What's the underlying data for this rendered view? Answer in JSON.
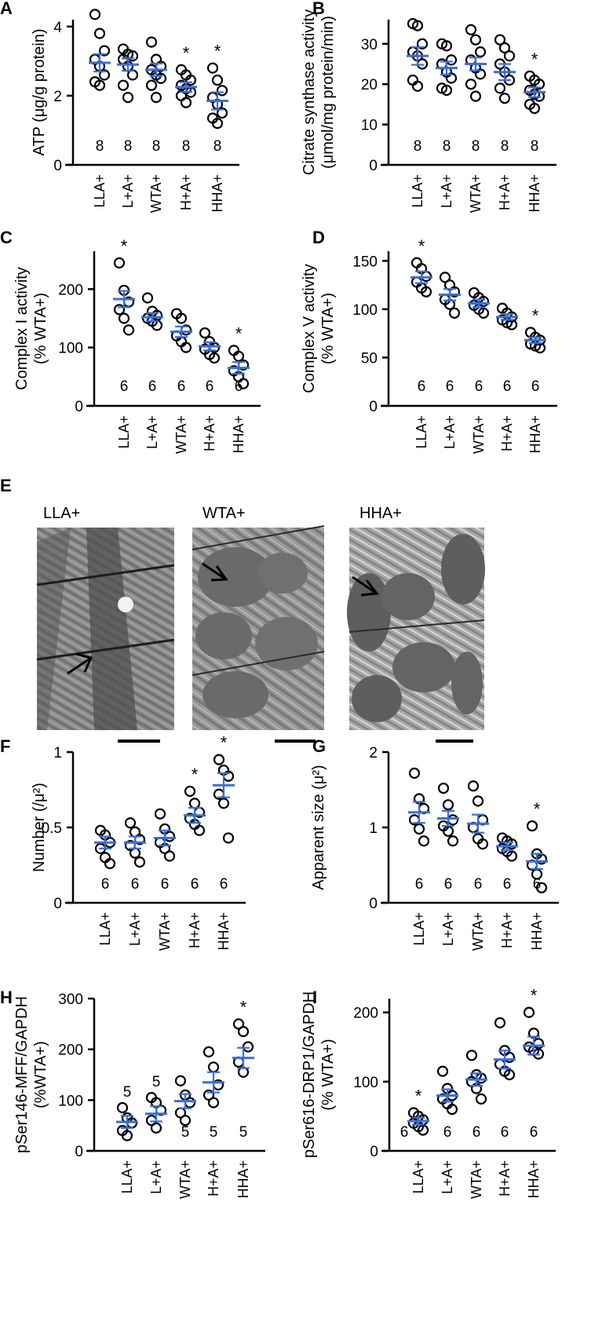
{
  "charts_type": "scatter",
  "micrographs": {
    "panel": "E",
    "images": [
      {
        "label": "LLA+"
      },
      {
        "label": "WTA+"
      },
      {
        "label": "HHA+"
      }
    ]
  },
  "colors": {
    "mean_bar": "#3a6fd8",
    "points": "#000000"
  },
  "chart_data": [
    {
      "panel": "A",
      "type": "scatter",
      "categories": [
        "LLA+",
        "L+A+",
        "WTA+",
        "H+A+",
        "HHA+"
      ],
      "ylabel": [
        "ATP (μg/g protein)"
      ],
      "ylim": [
        0,
        4.2
      ],
      "yticks": [
        0,
        2,
        4
      ],
      "n": [
        "8",
        "8",
        "8",
        "8",
        "8"
      ],
      "n_pos": "bottom",
      "significant": [
        false,
        false,
        false,
        true,
        true
      ],
      "means": [
        2.95,
        2.9,
        2.75,
        2.25,
        1.85
      ],
      "sem": [
        0.25,
        0.18,
        0.18,
        0.14,
        0.25
      ],
      "points": [
        [
          4.35,
          3.8,
          3.3,
          3.05,
          2.85,
          2.6,
          2.4,
          2.3
        ],
        [
          3.35,
          3.2,
          3.15,
          3.05,
          2.85,
          2.6,
          2.3,
          1.95
        ],
        [
          3.55,
          3.05,
          2.85,
          2.75,
          2.6,
          2.5,
          2.3,
          1.95
        ],
        [
          2.75,
          2.6,
          2.45,
          2.3,
          2.2,
          2.1,
          2.0,
          1.8
        ],
        [
          2.8,
          2.45,
          2.15,
          1.95,
          1.75,
          1.5,
          1.35,
          1.2
        ]
      ]
    },
    {
      "panel": "B",
      "type": "scatter",
      "categories": [
        "LLA+",
        "L+A+",
        "WTA+",
        "H+A+",
        "HHA+"
      ],
      "ylabel": [
        "Citrate synthase activity",
        "(μmol/mg protein/min)"
      ],
      "ylim": [
        0,
        36
      ],
      "yticks": [
        0,
        10,
        20,
        30
      ],
      "n": [
        "8",
        "8",
        "8",
        "8",
        "8"
      ],
      "n_pos": "bottom",
      "significant": [
        false,
        false,
        false,
        false,
        true
      ],
      "means": [
        27,
        24,
        25,
        23,
        18
      ],
      "sem": [
        2.2,
        1.6,
        1.6,
        2.0,
        1.2
      ],
      "points": [
        [
          35,
          34.5,
          30,
          28,
          27,
          25,
          21,
          19.5
        ],
        [
          30,
          29.5,
          26,
          25,
          23,
          21.5,
          19,
          18.5
        ],
        [
          33.5,
          31,
          28,
          26,
          24,
          22.5,
          20,
          17
        ],
        [
          31,
          29,
          27,
          25,
          23,
          21,
          19,
          16.5
        ],
        [
          22,
          21,
          20,
          18.5,
          17.5,
          17,
          15,
          14
        ]
      ]
    },
    {
      "panel": "C",
      "type": "scatter",
      "categories": [
        "LLA+",
        "L+A+",
        "WTA+",
        "H+A+",
        "HHA+"
      ],
      "ylabel": [
        "Complex I activity",
        "(% WTA+)"
      ],
      "ylim": [
        0,
        265
      ],
      "yticks": [
        0,
        100,
        200
      ],
      "n": [
        "6",
        "6",
        "6",
        "6",
        "6"
      ],
      "n_pos": "bottom",
      "significant": [
        true,
        false,
        false,
        false,
        true
      ],
      "means": [
        183,
        152,
        127,
        102,
        65
      ],
      "sem": [
        14,
        7,
        9,
        7,
        10
      ],
      "points": [
        [
          245,
          198,
          178,
          165,
          150,
          130
        ],
        [
          185,
          162,
          155,
          150,
          145,
          138
        ],
        [
          158,
          150,
          130,
          120,
          110,
          100
        ],
        [
          125,
          110,
          100,
          97,
          88,
          82
        ],
        [
          95,
          85,
          70,
          60,
          50,
          38
        ]
      ]
    },
    {
      "panel": "D",
      "type": "scatter",
      "categories": [
        "LLA+",
        "L+A+",
        "WTA+",
        "H+A+",
        "HHA+"
      ],
      "ylabel": [
        "Complex V activity",
        "(% WTA+)"
      ],
      "ylim": [
        0,
        160
      ],
      "yticks": [
        0,
        50,
        100,
        150
      ],
      "n": [
        "6",
        "6",
        "6",
        "6",
        "6"
      ],
      "n_pos": "bottom",
      "significant": [
        true,
        false,
        false,
        false,
        true
      ],
      "means": [
        133,
        115,
        106,
        92,
        68
      ],
      "sem": [
        6,
        6,
        4,
        3,
        3
      ],
      "points": [
        [
          148,
          142,
          134,
          128,
          122,
          118
        ],
        [
          133,
          125,
          118,
          110,
          105,
          96
        ],
        [
          117,
          112,
          108,
          104,
          100,
          96
        ],
        [
          101,
          96,
          92,
          89,
          86,
          84
        ],
        [
          76,
          71,
          68,
          64,
          62,
          60
        ]
      ]
    },
    {
      "panel": "F",
      "type": "scatter",
      "categories": [
        "LLA+",
        "L+A+",
        "WTA+",
        "H+A+",
        "HHA+"
      ],
      "ylabel": [
        "Number (/μ²)"
      ],
      "ylim": [
        0,
        1
      ],
      "yticks": [
        0,
        0.5,
        1
      ],
      "n": [
        "6",
        "6",
        "6",
        "6",
        "6"
      ],
      "n_pos": "bottom",
      "significant": [
        false,
        false,
        false,
        true,
        true
      ],
      "means": [
        0.4,
        0.4,
        0.43,
        0.58,
        0.78
      ],
      "sem": [
        0.04,
        0.04,
        0.05,
        0.05,
        0.08
      ],
      "points": [
        [
          0.48,
          0.45,
          0.4,
          0.36,
          0.3,
          0.26
        ],
        [
          0.53,
          0.47,
          0.42,
          0.38,
          0.33,
          0.27
        ],
        [
          0.59,
          0.49,
          0.44,
          0.4,
          0.36,
          0.31
        ],
        [
          0.74,
          0.66,
          0.6,
          0.56,
          0.52,
          0.48
        ],
        [
          0.95,
          0.88,
          0.84,
          0.72,
          0.66,
          0.43
        ]
      ]
    },
    {
      "panel": "G",
      "type": "scatter",
      "categories": [
        "LLA+",
        "L+A+",
        "WTA+",
        "H+A+",
        "HHA+"
      ],
      "ylabel": [
        "Apparent size (μ²)"
      ],
      "ylim": [
        0,
        2
      ],
      "yticks": [
        0,
        1,
        2
      ],
      "n": [
        "6",
        "6",
        "6",
        "6",
        "6"
      ],
      "n_pos": "bottom",
      "significant": [
        false,
        false,
        false,
        false,
        true
      ],
      "means": [
        1.2,
        1.12,
        1.05,
        0.75,
        0.55
      ],
      "sem": [
        0.14,
        0.1,
        0.12,
        0.05,
        0.1
      ],
      "points": [
        [
          1.72,
          1.38,
          1.25,
          1.1,
          0.98,
          0.82
        ],
        [
          1.52,
          1.3,
          1.1,
          1.02,
          0.95,
          0.82
        ],
        [
          1.55,
          1.35,
          1.1,
          1.0,
          0.85,
          0.78
        ],
        [
          0.86,
          0.82,
          0.78,
          0.72,
          0.68,
          0.62
        ],
        [
          1.02,
          0.65,
          0.58,
          0.5,
          0.38,
          0.2
        ]
      ]
    },
    {
      "panel": "H",
      "type": "scatter",
      "categories": [
        "LLA+",
        "L+A+",
        "WTA+",
        "H+A+",
        "HHA+"
      ],
      "ylabel": [
        "pSer146-MFF/GAPDH",
        "(%WTA+)"
      ],
      "ylim": [
        0,
        300
      ],
      "yticks": [
        0,
        100,
        200,
        300
      ],
      "n": [
        "5",
        "5",
        "5",
        "5",
        "5"
      ],
      "n_positions": [
        "top",
        "top",
        "bottom",
        "bottom",
        "bottom"
      ],
      "significant": [
        false,
        false,
        false,
        false,
        true
      ],
      "means": [
        57,
        73,
        98,
        135,
        183
      ],
      "sem": [
        12,
        15,
        14,
        20,
        20
      ],
      "points": [
        [
          85,
          65,
          55,
          40,
          30
        ],
        [
          105,
          95,
          80,
          60,
          45
        ],
        [
          138,
          110,
          95,
          75,
          60
        ],
        [
          195,
          165,
          130,
          110,
          95
        ],
        [
          250,
          235,
          205,
          175,
          155
        ]
      ]
    },
    {
      "panel": "I",
      "type": "scatter",
      "categories": [
        "LLA+",
        "L+A+",
        "WTA+",
        "H+A+",
        "HHA+"
      ],
      "ylabel": [
        "pSer616-DRP1/GAPDH",
        "(% WTA+)"
      ],
      "ylim": [
        0,
        220
      ],
      "yticks": [
        0,
        100,
        200
      ],
      "n": [
        "6",
        "6",
        "6",
        "6",
        "6"
      ],
      "n_pos": "bottom",
      "significant": [
        true,
        false,
        false,
        false,
        true
      ],
      "means": [
        43,
        80,
        103,
        132,
        152
      ],
      "sem": [
        5,
        9,
        9,
        13,
        13
      ],
      "points": [
        [
          55,
          50,
          45,
          40,
          35,
          30
        ],
        [
          115,
          90,
          80,
          75,
          68,
          60
        ],
        [
          138,
          110,
          105,
          100,
          90,
          75
        ],
        [
          185,
          145,
          135,
          125,
          115,
          110
        ],
        [
          200,
          170,
          155,
          150,
          145,
          140
        ]
      ]
    }
  ]
}
